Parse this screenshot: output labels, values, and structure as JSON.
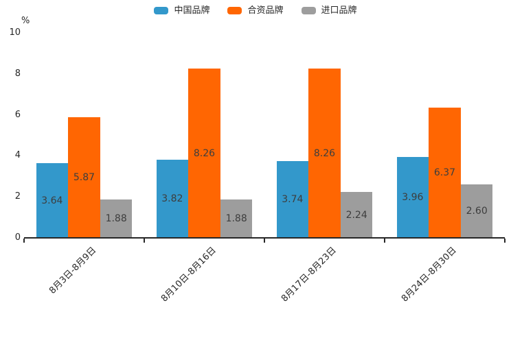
{
  "chart_data": {
    "type": "bar",
    "title": "",
    "unit_label": "%",
    "categories": [
      "8月3日-8月9日",
      "8月10日-8月16日",
      "8月17日-8月23日",
      "8月24日-8月30日"
    ],
    "series": [
      {
        "name": "中国品牌",
        "color": "#3398CB",
        "values": [
          3.64,
          3.82,
          3.74,
          3.96
        ]
      },
      {
        "name": "合资品牌",
        "color": "#FF6602",
        "values": [
          5.87,
          8.26,
          8.26,
          6.37
        ]
      },
      {
        "name": "进口品牌",
        "color": "#9D9D9D",
        "values": [
          1.88,
          1.88,
          2.24,
          2.6
        ]
      }
    ],
    "yticks": [
      0,
      2,
      4,
      6,
      8,
      10
    ],
    "ylim": [
      0,
      10
    ],
    "value_label_decimals": 2,
    "legend_position": "top",
    "grid": false,
    "colors": {
      "value_label": "#3D3D3D",
      "axis": "#262626",
      "tick_label": "#262626",
      "legend_label": "#262626",
      "background": "#FFFFFF"
    }
  }
}
